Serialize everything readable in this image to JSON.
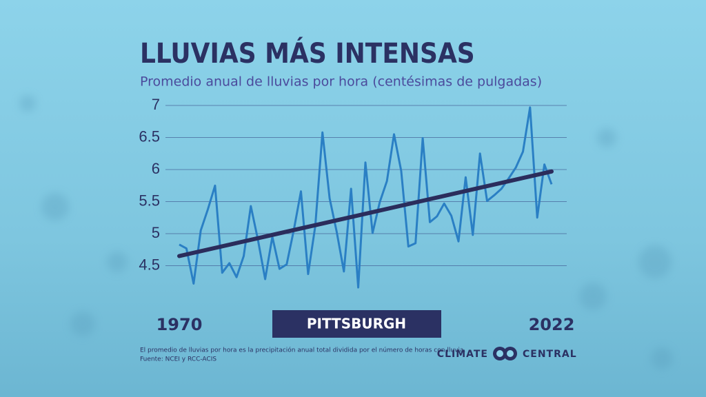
{
  "chart_data": {
    "type": "line",
    "title": "LLUVIAS MÁS INTENSAS",
    "subtitle": "Promedio anual de lluvias por hora (centésimas de pulgadas)",
    "location": "PITTSBURGH",
    "note": "El promedio de lluvias por hora es la precipitación anual total dividida por el número de horas con lluvia.",
    "source": "Fuente: NCEI y RCC-ACIS",
    "logo": {
      "left": "CLIMATE",
      "right": "CENTRAL"
    },
    "x": [
      1970,
      1971,
      1972,
      1973,
      1974,
      1975,
      1976,
      1977,
      1978,
      1979,
      1980,
      1981,
      1982,
      1983,
      1984,
      1985,
      1986,
      1987,
      1988,
      1989,
      1990,
      1991,
      1992,
      1993,
      1994,
      1995,
      1996,
      1997,
      1998,
      1999,
      2000,
      2001,
      2002,
      2003,
      2004,
      2005,
      2006,
      2007,
      2008,
      2009,
      2010,
      2011,
      2012,
      2013,
      2014,
      2015,
      2016,
      2017,
      2018,
      2019,
      2020,
      2021,
      2022
    ],
    "series": [
      {
        "color": "#2a7fc4",
        "values": [
          4.83,
          4.77,
          4.22,
          5.05,
          5.38,
          5.75,
          4.39,
          4.54,
          4.32,
          4.65,
          5.43,
          4.9,
          4.29,
          4.95,
          4.45,
          4.52,
          5.06,
          5.66,
          4.37,
          5.12,
          6.58,
          5.55,
          5.02,
          4.41,
          5.7,
          4.16,
          6.11,
          5.01,
          5.49,
          5.82,
          6.55,
          5.98,
          4.8,
          4.85,
          6.49,
          5.18,
          5.27,
          5.47,
          5.28,
          4.88,
          5.88,
          4.98,
          6.25,
          5.51,
          5.6,
          5.7,
          5.86,
          6.03,
          6.28,
          6.97,
          5.25,
          6.08,
          5.77
        ]
      }
    ],
    "trendline": {
      "color": "#2b2d5c",
      "x": [
        1970,
        2022
      ],
      "values": [
        4.65,
        5.97
      ]
    },
    "xlim": [
      1970,
      2022
    ],
    "xticks": [
      1970,
      2022
    ],
    "ylim": [
      4.1,
      7.05
    ],
    "yticks": [
      4.5,
      5,
      5.5,
      6,
      6.5,
      7
    ],
    "grid": true
  }
}
